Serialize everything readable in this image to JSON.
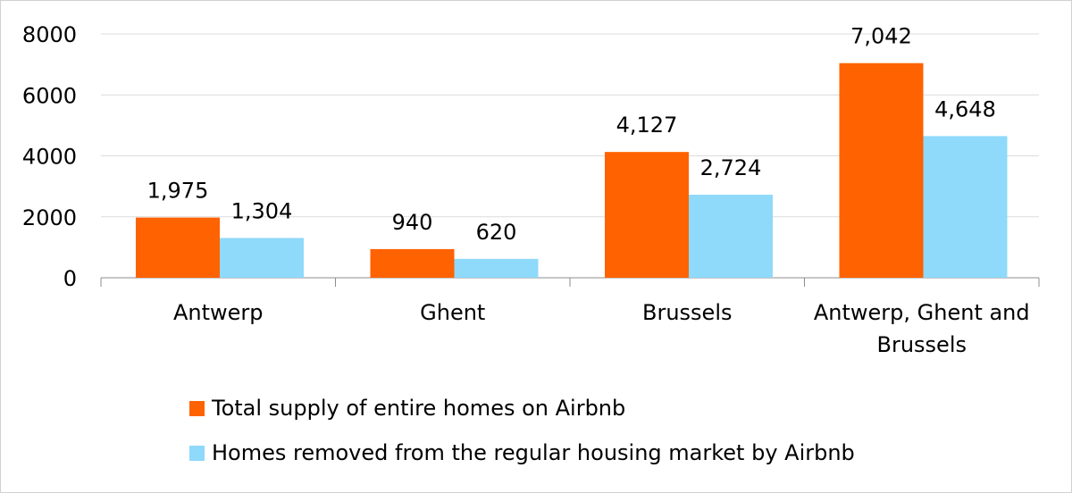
{
  "chart_data": {
    "type": "bar",
    "categories": [
      [
        "Antwerp"
      ],
      [
        "Ghent"
      ],
      [
        "Brussels"
      ],
      [
        "Antwerp, Ghent and",
        "Brussels"
      ]
    ],
    "series": [
      {
        "name": "Total supply of entire homes on Airbnb",
        "color": "#ff6200",
        "values": [
          1975,
          940,
          4127,
          7042
        ],
        "labels": [
          "1,975",
          "940",
          "4,127",
          "7,042"
        ]
      },
      {
        "name": "Homes removed from the regular housing market by Airbnb",
        "color": "#8fd9fa",
        "values": [
          1304,
          620,
          2724,
          4648
        ],
        "labels": [
          "1,304",
          "620",
          "2,724",
          "4,648"
        ]
      }
    ],
    "ylim": [
      0,
      8000
    ],
    "yticks": [
      0,
      2000,
      4000,
      6000,
      8000
    ],
    "ytick_labels": [
      "0",
      "2000",
      "4000",
      "6000",
      "8000"
    ],
    "grid": true,
    "legend_position": "bottom"
  }
}
